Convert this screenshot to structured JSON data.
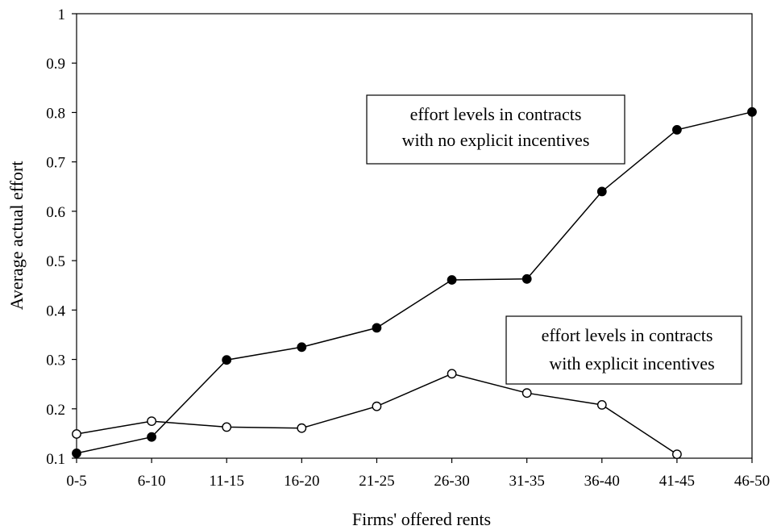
{
  "chart_data": {
    "type": "line",
    "title": "",
    "xlabel": "Firms' offered rents",
    "ylabel": "Average actual effort",
    "categories": [
      "0-5",
      "6-10",
      "11-15",
      "16-20",
      "21-25",
      "26-30",
      "31-35",
      "36-40",
      "41-45",
      "46-50"
    ],
    "ylim": [
      0.1,
      1
    ],
    "yticks": [
      "0.1",
      "0.2",
      "0.3",
      "0.4",
      "0.5",
      "0.6",
      "0.7",
      "0.8",
      "0.9",
      "1"
    ],
    "grid": false,
    "legend": "none",
    "series": [
      {
        "marker": "filled-circle",
        "color": "#000000",
        "values": [
          0.11,
          0.143,
          0.299,
          0.325,
          0.364,
          0.461,
          0.463,
          0.64,
          0.765,
          0.801
        ]
      },
      {
        "marker": "open-circle",
        "color": "#000000",
        "values": [
          0.149,
          0.175,
          0.163,
          0.161,
          0.205,
          0.271,
          0.232,
          0.208,
          0.108,
          null
        ]
      }
    ],
    "annotations": [
      {
        "lines": [
          "effort levels in contracts",
          "with no explicit incentives"
        ]
      },
      {
        "lines": [
          "effort levels in contracts",
          "with explicit incentives"
        ]
      }
    ]
  }
}
